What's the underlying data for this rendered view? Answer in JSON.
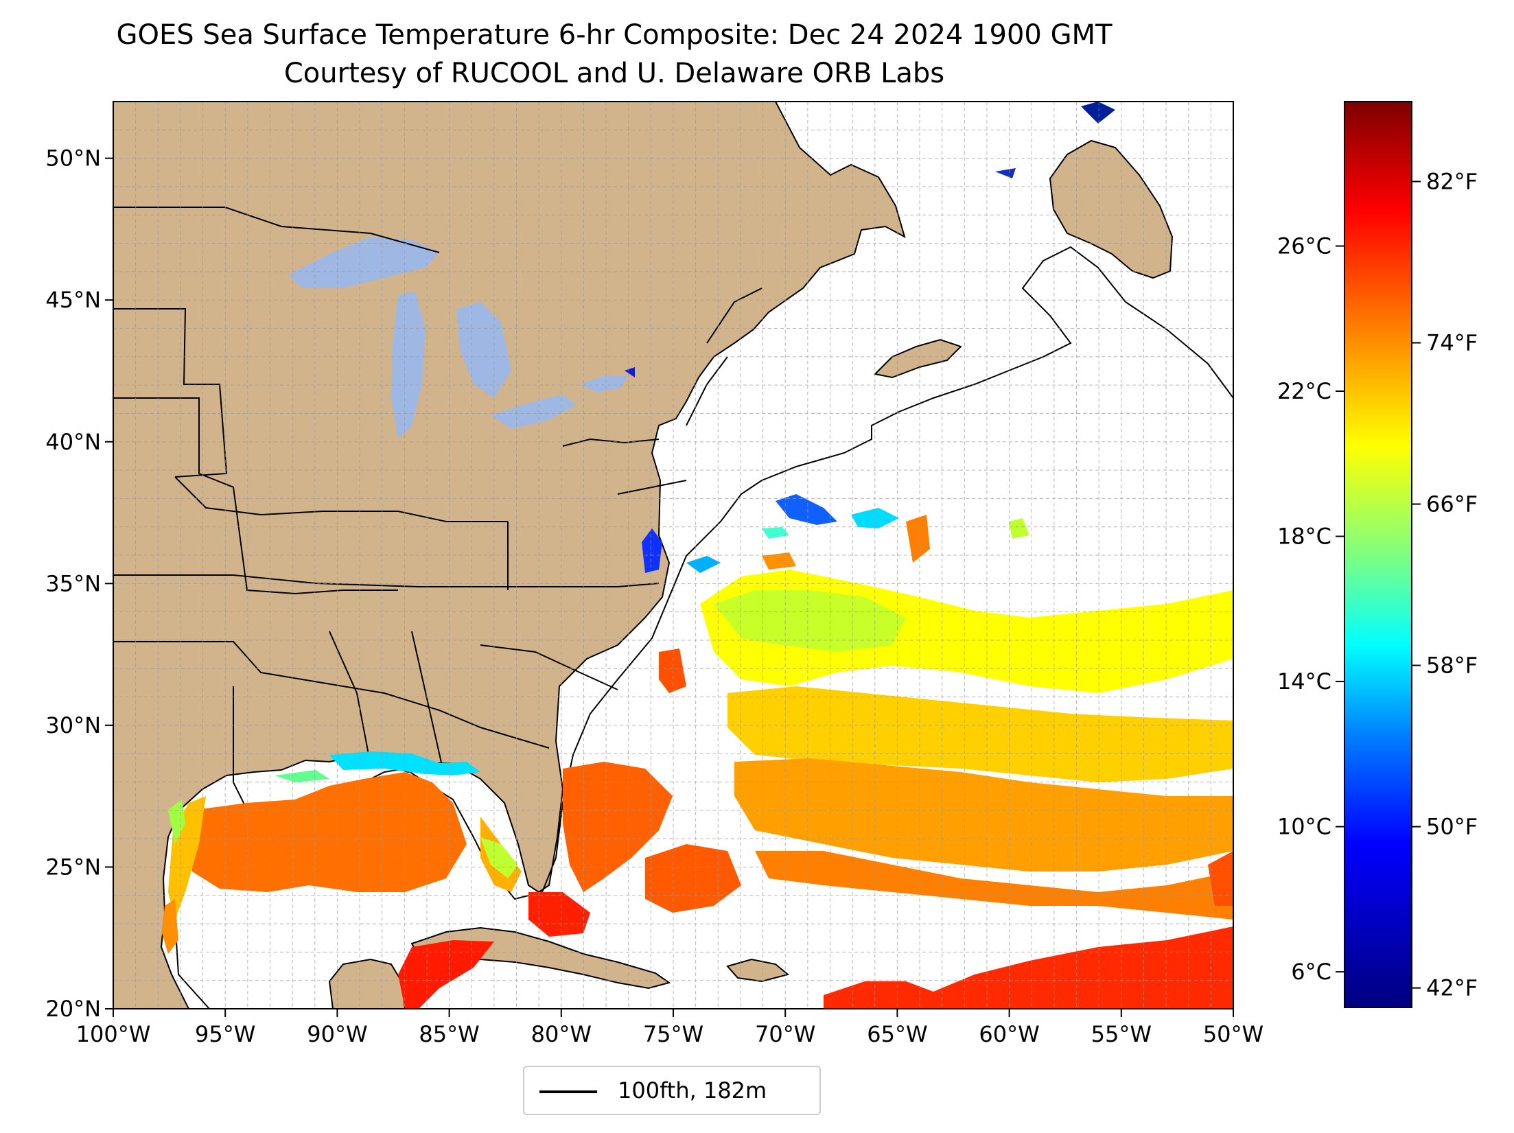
{
  "title": {
    "line1": "GOES Sea Surface Temperature 6-hr Composite: Dec 24 2024 1900 GMT",
    "line2": "Courtesy of RUCOOL and U. Delaware ORB Labs"
  },
  "map": {
    "lon_range": [
      -100,
      -50
    ],
    "lat_range": [
      20,
      52
    ],
    "lat_ticks": [
      {
        "value": 50,
        "label": "50°N"
      },
      {
        "value": 45,
        "label": "45°N"
      },
      {
        "value": 40,
        "label": "40°N"
      },
      {
        "value": 35,
        "label": "35°N"
      },
      {
        "value": 30,
        "label": "30°N"
      },
      {
        "value": 25,
        "label": "25°N"
      },
      {
        "value": 20,
        "label": "20°N"
      }
    ],
    "lon_ticks": [
      {
        "value": -100,
        "label": "100°W"
      },
      {
        "value": -95,
        "label": "95°W"
      },
      {
        "value": -90,
        "label": "90°W"
      },
      {
        "value": -85,
        "label": "85°W"
      },
      {
        "value": -80,
        "label": "80°W"
      },
      {
        "value": -75,
        "label": "75°W"
      },
      {
        "value": -70,
        "label": "70°W"
      },
      {
        "value": -65,
        "label": "65°W"
      },
      {
        "value": -60,
        "label": "60°W"
      },
      {
        "value": -55,
        "label": "55°W"
      },
      {
        "value": -50,
        "label": "50°W"
      }
    ],
    "grid": true,
    "colors": {
      "land": "#d2b48c",
      "lakes": "#9fb8e3",
      "ocean": "#ffffff",
      "borders": "#000000"
    }
  },
  "legend": {
    "label": "100fth, 182m",
    "placement": "bottom-center"
  },
  "colorbar": {
    "colormap": "jet",
    "range_celsius": [
      5,
      30
    ],
    "celsius_ticks": [
      {
        "value": 26,
        "label": "26°C"
      },
      {
        "value": 22,
        "label": "22°C"
      },
      {
        "value": 18,
        "label": "18°C"
      },
      {
        "value": 14,
        "label": "14°C"
      },
      {
        "value": 10,
        "label": "10°C"
      },
      {
        "value": 6,
        "label": "6°C"
      }
    ],
    "fahrenheit_ticks": [
      {
        "value": 82,
        "label": "82°F"
      },
      {
        "value": 74,
        "label": "74°F"
      },
      {
        "value": 66,
        "label": "66°F"
      },
      {
        "value": 58,
        "label": "58°F"
      },
      {
        "value": 50,
        "label": "50°F"
      },
      {
        "value": 42,
        "label": "42°F"
      }
    ]
  }
}
